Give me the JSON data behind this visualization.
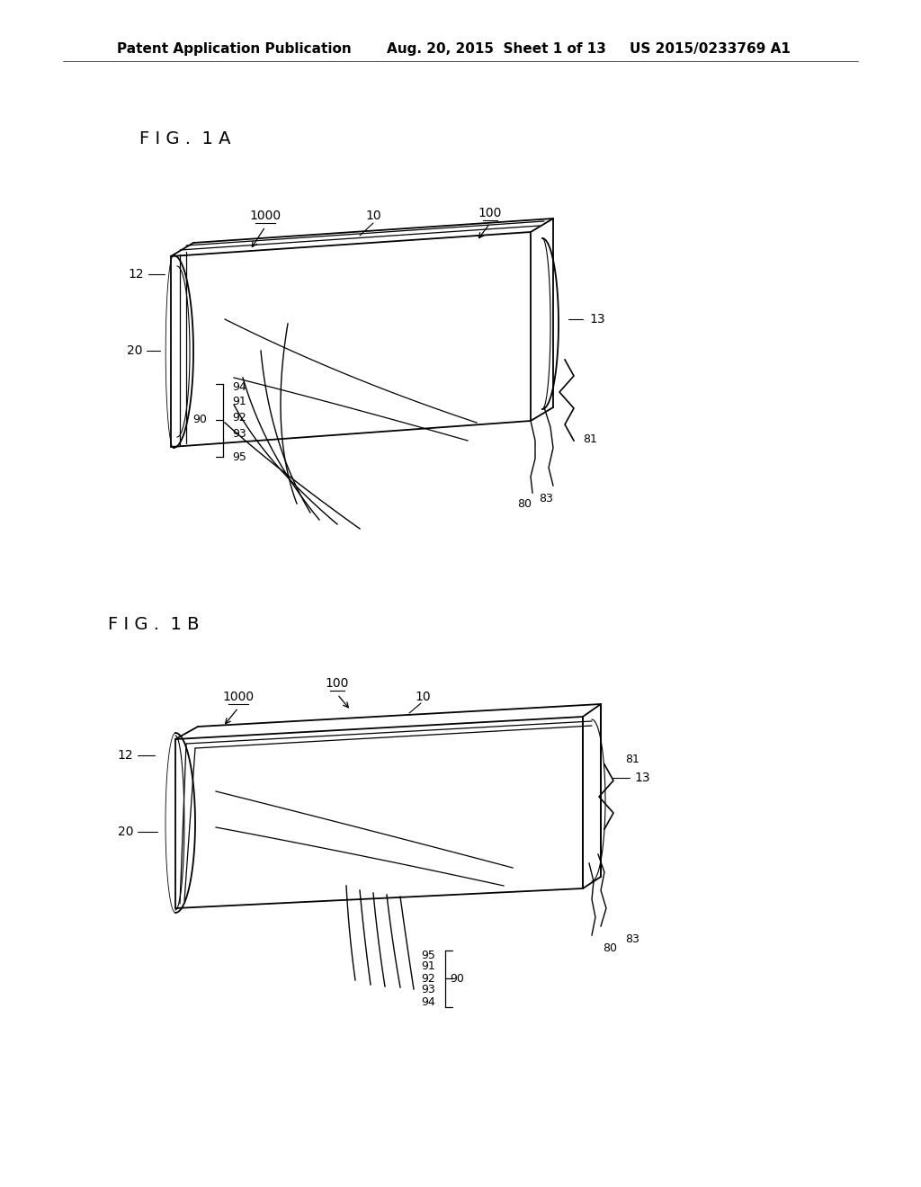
{
  "bg_color": "#ffffff",
  "line_color": "#000000",
  "header_left": "Patent Application Publication",
  "header_mid": "Aug. 20, 2015  Sheet 1 of 13",
  "header_right": "US 2015/0233769 A1",
  "fig1a_label": "F I G .  1 A",
  "fig1b_label": "F I G .  1 B",
  "font_size_label": 14,
  "font_size_ref": 10,
  "font_size_header": 11
}
